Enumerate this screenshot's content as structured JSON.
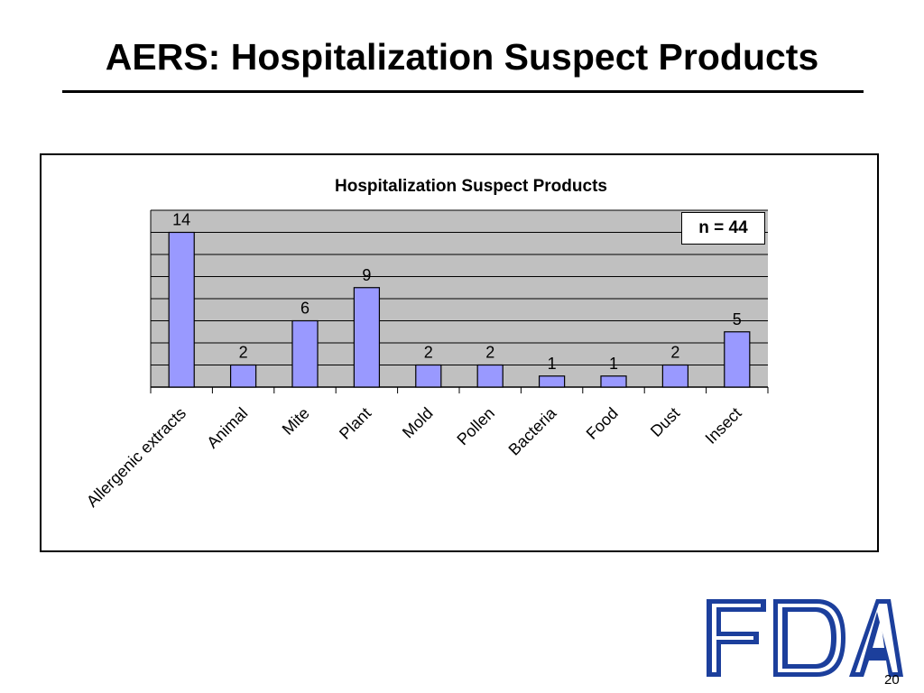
{
  "slide": {
    "title": "AERS: Hospitalization Suspect Products",
    "page_number": "20",
    "logo_text": "FDA"
  },
  "chart_data": {
    "type": "bar",
    "title": "Hospitalization Suspect Products",
    "annotation": "n = 44",
    "categories": [
      "Allergenic extracts",
      "Animal",
      "Mite",
      "Plant",
      "Mold",
      "Pollen",
      "Bacteria",
      "Food",
      "Dust",
      "Insect"
    ],
    "values": [
      14,
      2,
      6,
      9,
      2,
      2,
      1,
      1,
      2,
      5
    ],
    "xlabel": "",
    "ylabel": "",
    "ylim": [
      0,
      16
    ],
    "grid": true,
    "bar_color": "#9999ff",
    "plot_background": "#c0c0c0",
    "legend": "none"
  }
}
